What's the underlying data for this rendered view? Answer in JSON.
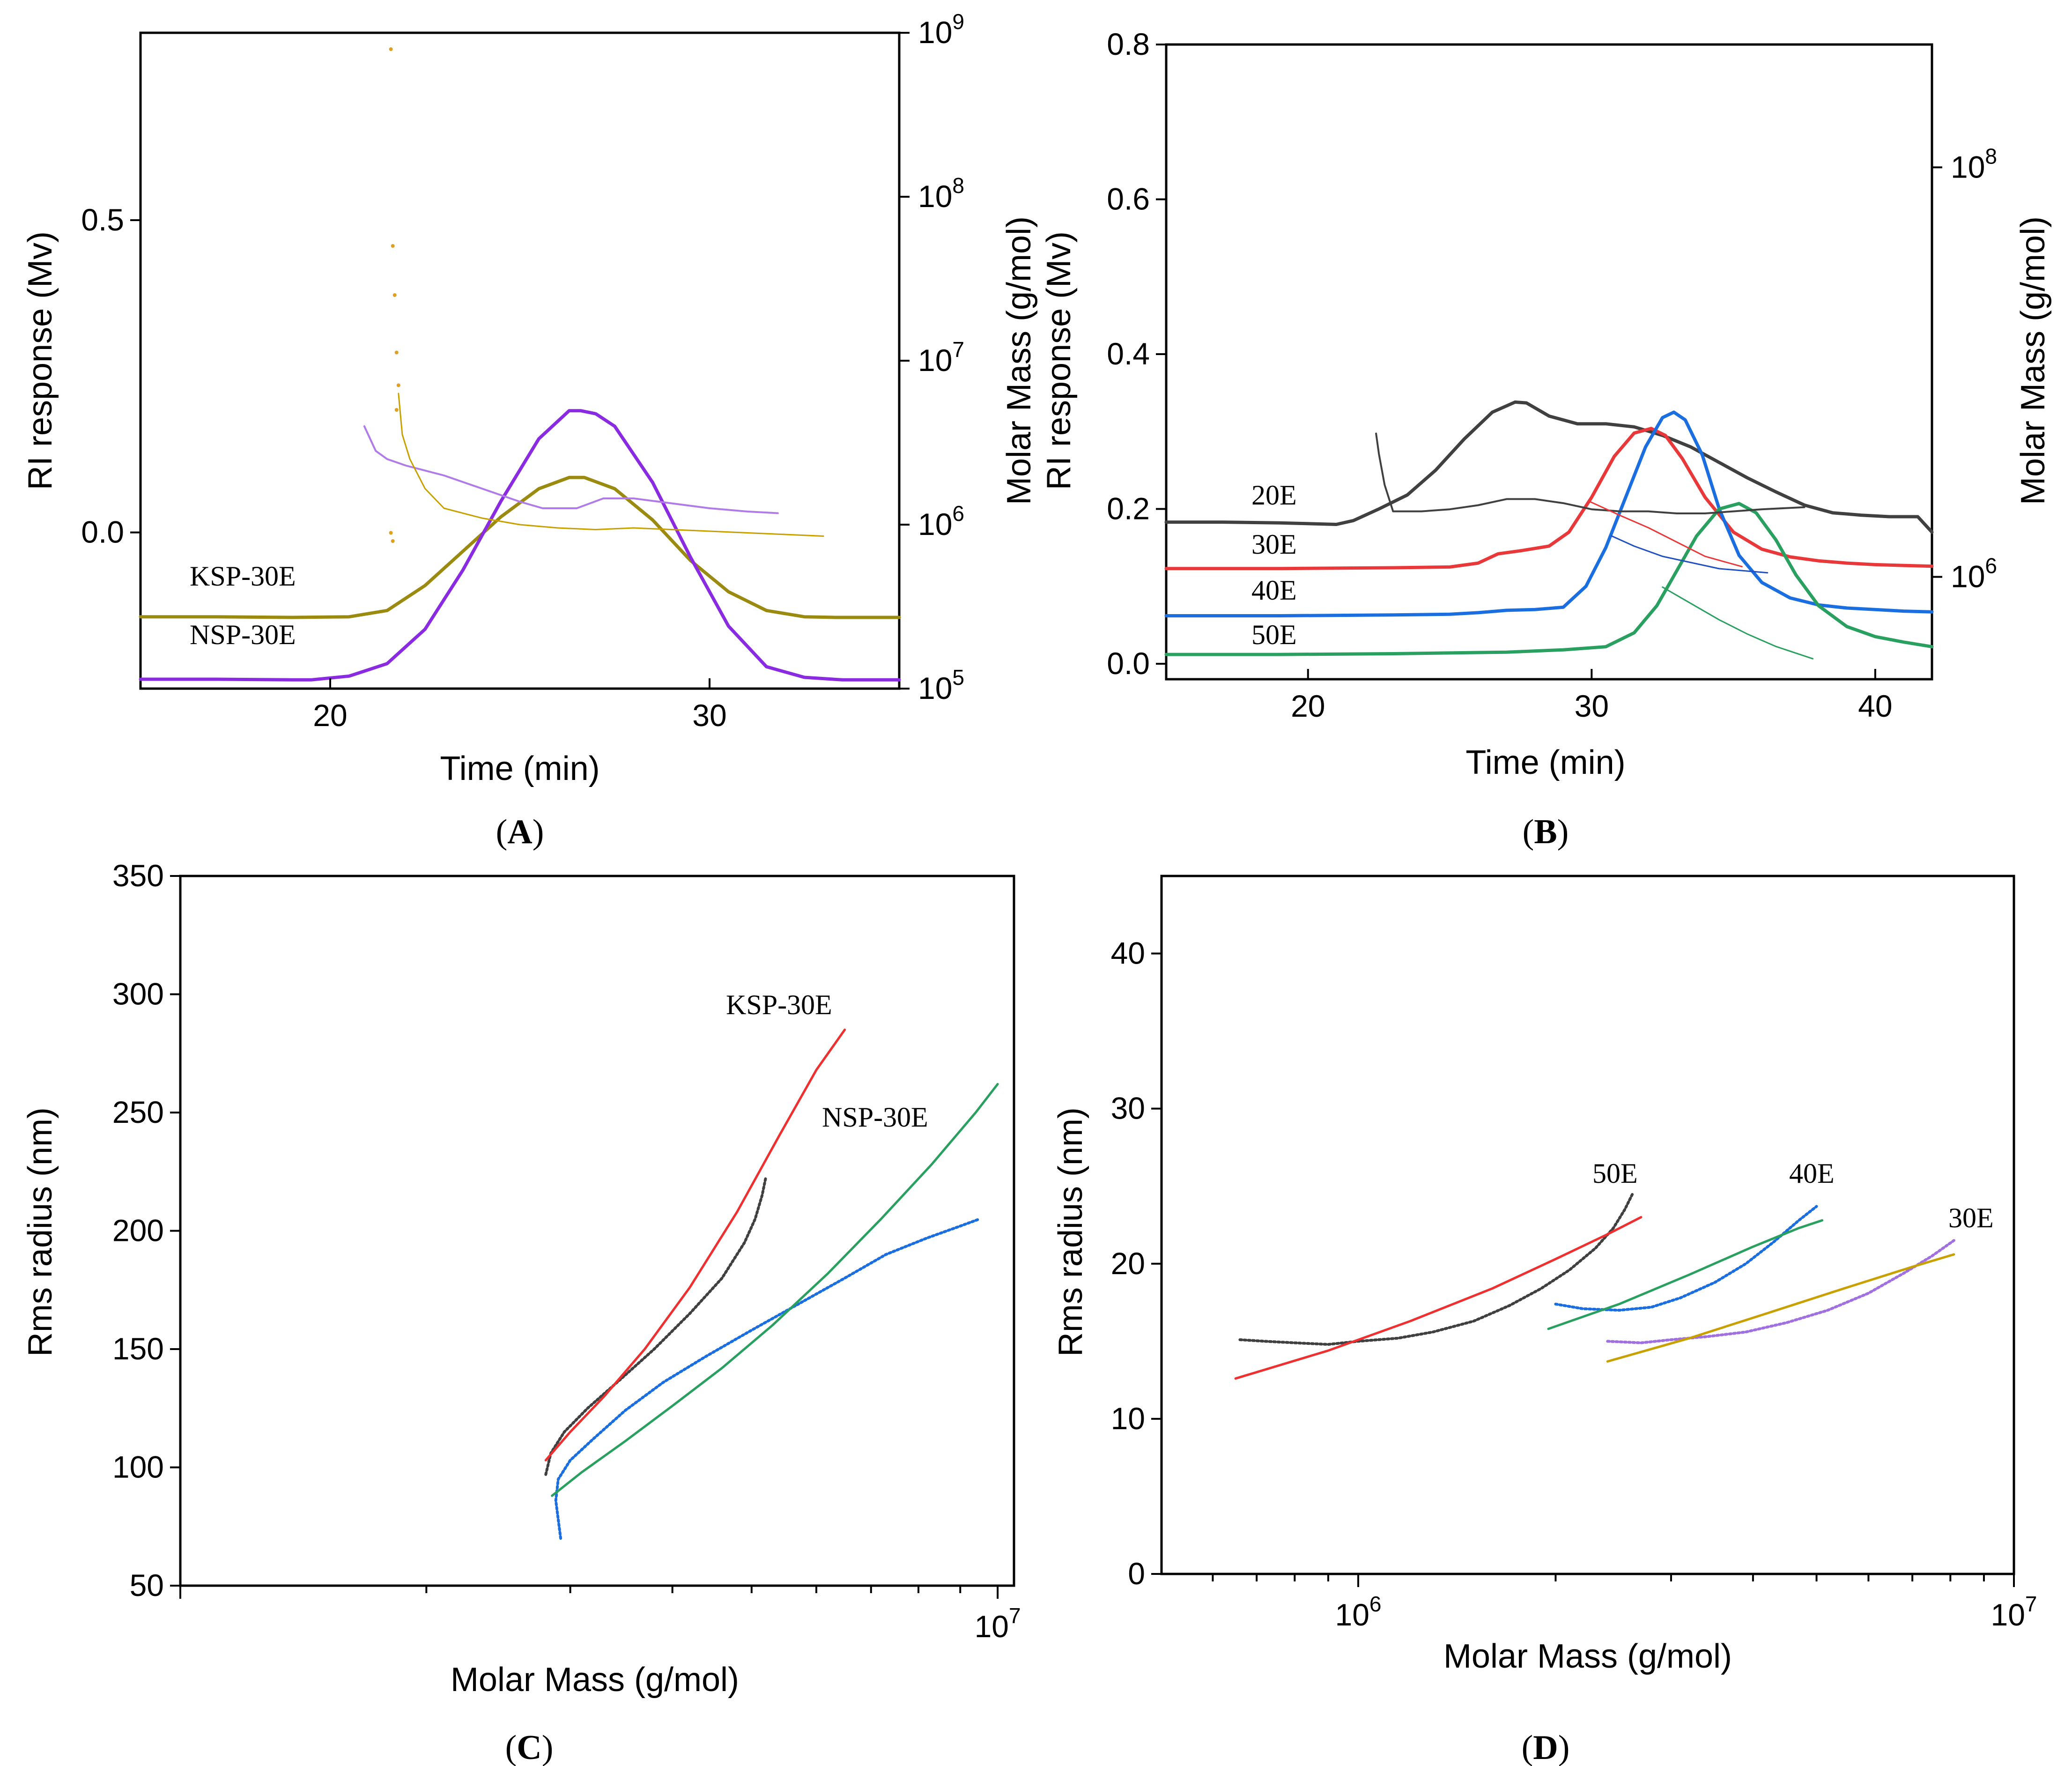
{
  "figure": {
    "captions": [
      "(A)",
      "(B)",
      "(C)",
      "(D)"
    ]
  },
  "chart_data": [
    {
      "panel": "A",
      "type": "line",
      "caption": "(A)",
      "xlabel": "Time (min)",
      "ylabel": "RI response (Mv)",
      "y2label": "Molar Mass (g/mol)",
      "xlim": [
        15,
        35
      ],
      "ylim": [
        -0.25,
        0.8
      ],
      "y2lim_log10": [
        5,
        9
      ],
      "x_ticks": [
        20,
        30
      ],
      "y_ticks": [
        0.0,
        0.5
      ],
      "y2_ticks": [
        5,
        6,
        7,
        8,
        9
      ],
      "y2_tick_labels": [
        "10^5",
        "10^6",
        "10^7",
        "10^8",
        "10^9"
      ],
      "series": [
        {
          "name": "KSP-30E",
          "axis": "left",
          "color": "#9a8a10",
          "width": 7,
          "x": [
            15,
            17,
            19,
            20.5,
            21.5,
            22.5,
            23.5,
            24.5,
            25.5,
            26.3,
            26.7,
            27.5,
            28.5,
            29.5,
            30.5,
            31.5,
            32.5,
            33.3,
            34,
            35
          ],
          "y": [
            -0.135,
            -0.135,
            -0.136,
            -0.135,
            -0.125,
            -0.085,
            -0.03,
            0.025,
            0.07,
            0.088,
            0.088,
            0.07,
            0.02,
            -0.045,
            -0.095,
            -0.125,
            -0.135,
            -0.136,
            -0.136,
            -0.136
          ]
        },
        {
          "name": "NSP-30E",
          "axis": "left",
          "color": "#8a2be2",
          "width": 7,
          "x": [
            15,
            17,
            19,
            19.5,
            20.5,
            21.5,
            22.5,
            23.5,
            24.5,
            25.5,
            26.3,
            26.6,
            27,
            27.5,
            28.5,
            29.5,
            30.5,
            31.5,
            32.5,
            33.5,
            34,
            35
          ],
          "y": [
            -0.235,
            -0.235,
            -0.236,
            -0.236,
            -0.23,
            -0.21,
            -0.155,
            -0.06,
            0.05,
            0.15,
            0.195,
            0.195,
            0.19,
            0.17,
            0.08,
            -0.04,
            -0.15,
            -0.215,
            -0.232,
            -0.236,
            -0.236,
            -0.236
          ]
        },
        {
          "name": "NSP-30E molar mass",
          "axis": "right",
          "color": "#b07ae8",
          "width": 4,
          "x": [
            20.9,
            21.2,
            21.5,
            22,
            23,
            24,
            25,
            25.6,
            26.5,
            27.2,
            28,
            29,
            30,
            31,
            31.8
          ],
          "y": [
            6.6,
            6.45,
            6.4,
            6.36,
            6.3,
            6.22,
            6.14,
            6.1,
            6.1,
            6.16,
            6.16,
            6.13,
            6.1,
            6.08,
            6.07
          ]
        },
        {
          "name": "KSP-30E molar mass",
          "axis": "right",
          "color": "#c8a000",
          "width": 3,
          "x": [
            21.8,
            21.9,
            22.1,
            22.5,
            23,
            24,
            25,
            26,
            27,
            28,
            29,
            30,
            31,
            32,
            33
          ],
          "y": [
            6.8,
            6.55,
            6.4,
            6.22,
            6.1,
            6.04,
            6.0,
            5.98,
            5.97,
            5.98,
            5.97,
            5.96,
            5.95,
            5.94,
            5.93
          ]
        },
        {
          "name": "KSP-30E scattered points",
          "axis": "right",
          "color": "#e0a020",
          "width": 0,
          "x": [
            21.6,
            21.65,
            21.7,
            21.75,
            21.8,
            21.75,
            21.65,
            21.6
          ],
          "y": [
            8.9,
            7.7,
            7.4,
            7.05,
            6.85,
            6.7,
            5.9,
            5.95
          ]
        }
      ],
      "annotations": [
        "KSP-30E",
        "NSP-30E"
      ]
    },
    {
      "panel": "B",
      "type": "line",
      "caption": "(B)",
      "xlabel": "Time (min)",
      "ylabel": "RI response (Mv)",
      "y2label": "Molar Mass (g/mol)",
      "xlim": [
        15,
        42
      ],
      "ylim": [
        -0.02,
        0.8
      ],
      "y2lim_log10": [
        5.5,
        8.6
      ],
      "x_ticks": [
        20,
        30,
        40
      ],
      "y_ticks": [
        0.0,
        0.2,
        0.4,
        0.6,
        0.8
      ],
      "y2_ticks": [
        6,
        8
      ],
      "y2_tick_labels": [
        "10^6",
        "10^8"
      ],
      "series": [
        {
          "name": "20E",
          "axis": "left",
          "color": "#404040",
          "width": 7,
          "x": [
            15,
            17,
            19,
            21,
            21.6,
            22.5,
            23.5,
            24.5,
            25.5,
            26.5,
            27.3,
            27.7,
            28.5,
            29.5,
            30.5,
            31.5,
            32.5,
            33.5,
            34.5,
            35.5,
            36.5,
            37.5,
            38.5,
            39.5,
            40.5,
            41.5,
            42
          ],
          "y": [
            0.183,
            0.183,
            0.182,
            0.18,
            0.185,
            0.2,
            0.218,
            0.25,
            0.29,
            0.325,
            0.338,
            0.337,
            0.32,
            0.31,
            0.31,
            0.306,
            0.295,
            0.28,
            0.26,
            0.24,
            0.222,
            0.205,
            0.195,
            0.192,
            0.19,
            0.19,
            0.17
          ]
        },
        {
          "name": "30E",
          "axis": "left",
          "color": "#e8383a",
          "width": 7,
          "x": [
            15,
            19,
            23,
            25,
            26,
            26.7,
            27.5,
            28.5,
            29.2,
            30,
            30.8,
            31.5,
            32.1,
            32.6,
            33.2,
            34,
            35,
            36,
            37,
            38,
            39,
            40,
            41,
            42
          ],
          "y": [
            0.123,
            0.123,
            0.124,
            0.125,
            0.13,
            0.142,
            0.146,
            0.152,
            0.17,
            0.215,
            0.268,
            0.298,
            0.304,
            0.295,
            0.265,
            0.215,
            0.17,
            0.148,
            0.138,
            0.133,
            0.13,
            0.128,
            0.127,
            0.126
          ]
        },
        {
          "name": "40E",
          "axis": "left",
          "color": "#1a6ee0",
          "width": 7,
          "x": [
            15,
            19,
            23,
            25,
            26,
            27,
            28,
            29,
            29.8,
            30.5,
            31.2,
            31.9,
            32.5,
            32.9,
            33.3,
            33.9,
            34.5,
            35.2,
            36,
            37,
            38,
            39,
            40,
            41,
            42
          ],
          "y": [
            0.062,
            0.062,
            0.063,
            0.064,
            0.066,
            0.069,
            0.07,
            0.073,
            0.1,
            0.15,
            0.215,
            0.28,
            0.318,
            0.325,
            0.315,
            0.27,
            0.2,
            0.14,
            0.105,
            0.085,
            0.076,
            0.072,
            0.07,
            0.068,
            0.067
          ]
        },
        {
          "name": "50E",
          "axis": "left",
          "color": "#2aa060",
          "width": 7,
          "x": [
            15,
            19,
            23,
            27,
            29,
            30.5,
            31.5,
            32.3,
            33,
            33.7,
            34.5,
            35.2,
            35.8,
            36.5,
            37.2,
            38,
            39,
            40,
            41,
            42
          ],
          "y": [
            0.012,
            0.012,
            0.013,
            0.015,
            0.018,
            0.022,
            0.04,
            0.075,
            0.12,
            0.165,
            0.2,
            0.207,
            0.195,
            0.16,
            0.115,
            0.075,
            0.048,
            0.035,
            0.028,
            0.022
          ]
        },
        {
          "name": "20E molar mass",
          "axis": "right",
          "color": "#404040",
          "width": 4,
          "x": [
            22.4,
            22.5,
            22.7,
            23,
            24,
            25,
            26,
            27,
            28,
            29,
            30,
            31,
            32,
            33,
            34,
            35,
            36,
            37.5
          ],
          "y": [
            6.7,
            6.6,
            6.45,
            6.32,
            6.32,
            6.33,
            6.35,
            6.38,
            6.38,
            6.36,
            6.33,
            6.32,
            6.32,
            6.31,
            6.31,
            6.32,
            6.33,
            6.34
          ]
        },
        {
          "name": "30E molar mass",
          "axis": "right",
          "color": "#e8383a",
          "width": 3,
          "x": [
            29.9,
            31,
            32,
            33,
            34,
            35.3
          ],
          "y": [
            6.37,
            6.3,
            6.24,
            6.17,
            6.1,
            6.05
          ]
        },
        {
          "name": "40E molar mass",
          "axis": "right",
          "color": "#2050c0",
          "width": 3,
          "x": [
            30.7,
            31.5,
            32.5,
            33.5,
            34.5,
            36.2
          ],
          "y": [
            6.2,
            6.15,
            6.1,
            6.07,
            6.04,
            6.02
          ]
        },
        {
          "name": "50E molar mass",
          "axis": "right",
          "color": "#2aa060",
          "width": 3,
          "x": [
            32.5,
            33.5,
            34.5,
            35.5,
            36.5,
            37.8
          ],
          "y": [
            5.95,
            5.87,
            5.79,
            5.72,
            5.66,
            5.6
          ]
        }
      ],
      "annotations": [
        "20E",
        "30E",
        "40E",
        "50E"
      ]
    },
    {
      "panel": "C",
      "type": "scatter",
      "caption": "(C)",
      "xlabel": "Molar Mass (g/mol)",
      "ylabel": "Rms radius (nm)",
      "x_scale": "log",
      "xlim_log10": [
        6.0,
        7.02
      ],
      "ylim": [
        50,
        350
      ],
      "x_ticks_log10": [
        7
      ],
      "x_tick_labels": [
        "10^7"
      ],
      "y_ticks": [
        50,
        100,
        150,
        200,
        250,
        300,
        350
      ],
      "series": [
        {
          "name": "KSP-30E data",
          "color": "#404040",
          "x": [
            2800000,
            2840000,
            2950000,
            3150000,
            3450000,
            3800000,
            4200000,
            4600000,
            4900000,
            5050000,
            5150000,
            5200000
          ],
          "y": [
            97,
            106,
            115,
            125,
            137,
            150,
            165,
            180,
            195,
            205,
            215,
            222
          ]
        },
        {
          "name": "KSP-30E fit",
          "color": "#ee3030",
          "x": [
            2800000,
            3000000,
            3300000,
            3700000,
            4200000,
            4800000,
            5400000,
            6000000,
            6500000
          ],
          "y": [
            103,
            115,
            130,
            150,
            176,
            208,
            240,
            268,
            285
          ]
        },
        {
          "name": "NSP-30E data",
          "color": "#1a6ee0",
          "x": [
            2920000,
            2900000,
            2880000,
            2900000,
            3000000,
            3200000,
            3500000,
            3900000,
            4400000,
            5000000,
            5700000,
            6500000,
            7300000,
            8200000,
            9000000,
            9500000
          ],
          "y": [
            70,
            78,
            86,
            95,
            103,
            112,
            124,
            136,
            147,
            158,
            169,
            180,
            190,
            197,
            202,
            205
          ]
        },
        {
          "name": "NSP-30E fit",
          "color": "#2aa060",
          "x": [
            2850000,
            3100000,
            3500000,
            4000000,
            4600000,
            5300000,
            6200000,
            7200000,
            8300000,
            9400000,
            10000000
          ],
          "y": [
            88,
            98,
            111,
            126,
            142,
            160,
            182,
            205,
            228,
            250,
            262
          ]
        }
      ],
      "annotations": [
        "KSP-30E",
        "NSP-30E"
      ]
    },
    {
      "panel": "D",
      "type": "scatter",
      "caption": "(D)",
      "xlabel": "Molar Mass (g/mol)",
      "ylabel": "Rms radius (nm)",
      "x_scale": "log",
      "xlim_log10": [
        5.7,
        7.0
      ],
      "ylim": [
        0,
        45
      ],
      "x_ticks_log10": [
        6,
        7
      ],
      "x_tick_labels": [
        "10^6",
        "10^7"
      ],
      "y_ticks": [
        0,
        10,
        20,
        30,
        40
      ],
      "series": [
        {
          "name": "50E data",
          "color": "#404040",
          "x": [
            660000,
            720000,
            800000,
            900000,
            1000000,
            1150000,
            1300000,
            1500000,
            1700000,
            1900000,
            2100000,
            2300000,
            2450000,
            2550000,
            2620000
          ],
          "y": [
            15.1,
            15.0,
            14.9,
            14.8,
            15.0,
            15.2,
            15.6,
            16.3,
            17.3,
            18.4,
            19.6,
            21.0,
            22.3,
            23.5,
            24.5
          ]
        },
        {
          "name": "50E fit",
          "color": "#ee3030",
          "x": [
            650000,
            900000,
            1200000,
            1600000,
            2000000,
            2400000,
            2700000
          ],
          "y": [
            12.6,
            14.4,
            16.3,
            18.4,
            20.3,
            21.9,
            23.0
          ]
        },
        {
          "name": "40E data",
          "color": "#1a6ee0",
          "x": [
            2000000,
            2200000,
            2500000,
            2800000,
            3100000,
            3500000,
            3900000,
            4300000,
            4700000,
            5000000
          ],
          "y": [
            17.4,
            17.1,
            17.0,
            17.2,
            17.8,
            18.8,
            20.0,
            21.4,
            22.8,
            23.7
          ]
        },
        {
          "name": "40E fit",
          "color": "#2aa060",
          "x": [
            1950000,
            2500000,
            3200000,
            4000000,
            4700000,
            5100000
          ],
          "y": [
            15.8,
            17.4,
            19.3,
            21.1,
            22.3,
            22.8
          ]
        },
        {
          "name": "30E data",
          "color": "#a070e0",
          "x": [
            2400000,
            2700000,
            3000000,
            3400000,
            3900000,
            4500000,
            5200000,
            6000000,
            6800000,
            7500000,
            8100000
          ],
          "y": [
            15.0,
            14.9,
            15.1,
            15.3,
            15.6,
            16.2,
            17.0,
            18.1,
            19.4,
            20.5,
            21.5
          ]
        },
        {
          "name": "30E fit",
          "color": "#c8a000",
          "x": [
            2400000,
            3200000,
            4200000,
            5500000,
            7000000,
            8100000
          ],
          "y": [
            13.7,
            15.2,
            16.8,
            18.4,
            19.8,
            20.6
          ]
        }
      ],
      "annotations": [
        "50E",
        "40E",
        "30E"
      ]
    }
  ]
}
